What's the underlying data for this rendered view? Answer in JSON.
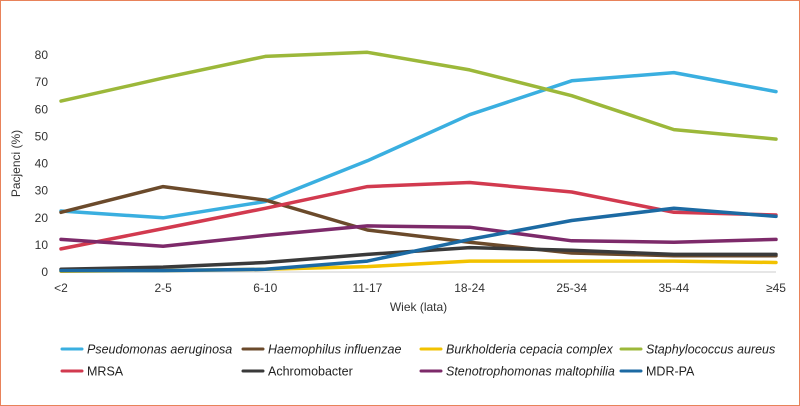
{
  "chart_data": {
    "type": "line",
    "xlabel": "Wiek (lata)",
    "ylabel": "Pacjenci (%)",
    "categories": [
      "<2",
      "2-5",
      "6-10",
      "11-17",
      "18-24",
      "25-34",
      "35-44",
      "≥45"
    ],
    "ylim": [
      0,
      80
    ],
    "yticks": [
      0,
      10,
      20,
      30,
      40,
      50,
      60,
      70,
      80
    ],
    "grid": false,
    "legend_position": "bottom",
    "series": [
      {
        "name": "Pseudomonas aeruginosa",
        "color": "#3aafe0",
        "italic": true,
        "values": [
          22.5,
          20,
          26,
          41,
          58,
          70.5,
          73.5,
          66.5
        ]
      },
      {
        "name": "Haemophilus influenzae",
        "color": "#6b4a2b",
        "italic": true,
        "values": [
          22,
          31.5,
          26.5,
          15.5,
          11,
          7,
          6,
          6
        ]
      },
      {
        "name": "Burkholderia cepacia complex",
        "color": "#f2c200",
        "italic": true,
        "values": [
          0.3,
          0.5,
          1,
          2,
          4,
          4,
          4,
          3.5
        ]
      },
      {
        "name": "Staphylococcus aureus",
        "color": "#9cb83a",
        "italic": true,
        "values": [
          63,
          71.5,
          79.5,
          81,
          74.5,
          65,
          52.5,
          49
        ]
      },
      {
        "name": "MRSA",
        "color": "#d23a4f",
        "italic": false,
        "values": [
          8.5,
          16,
          23.5,
          31.5,
          33,
          29.5,
          22,
          21
        ]
      },
      {
        "name": "Achromobacter",
        "color": "#3a3a3a",
        "italic": false,
        "values": [
          1,
          1.8,
          3.5,
          6.5,
          9,
          8,
          6.5,
          6.5
        ]
      },
      {
        "name": "Stenotrophomonas maltophilia",
        "color": "#7d2a6a",
        "italic": true,
        "values": [
          12,
          9.5,
          13.5,
          17,
          16.5,
          11.5,
          11,
          12
        ]
      },
      {
        "name": "MDR-PA",
        "color": "#1c6aa3",
        "italic": false,
        "values": [
          0.5,
          0.5,
          1,
          4,
          12,
          19,
          23.5,
          20.5
        ]
      }
    ]
  }
}
